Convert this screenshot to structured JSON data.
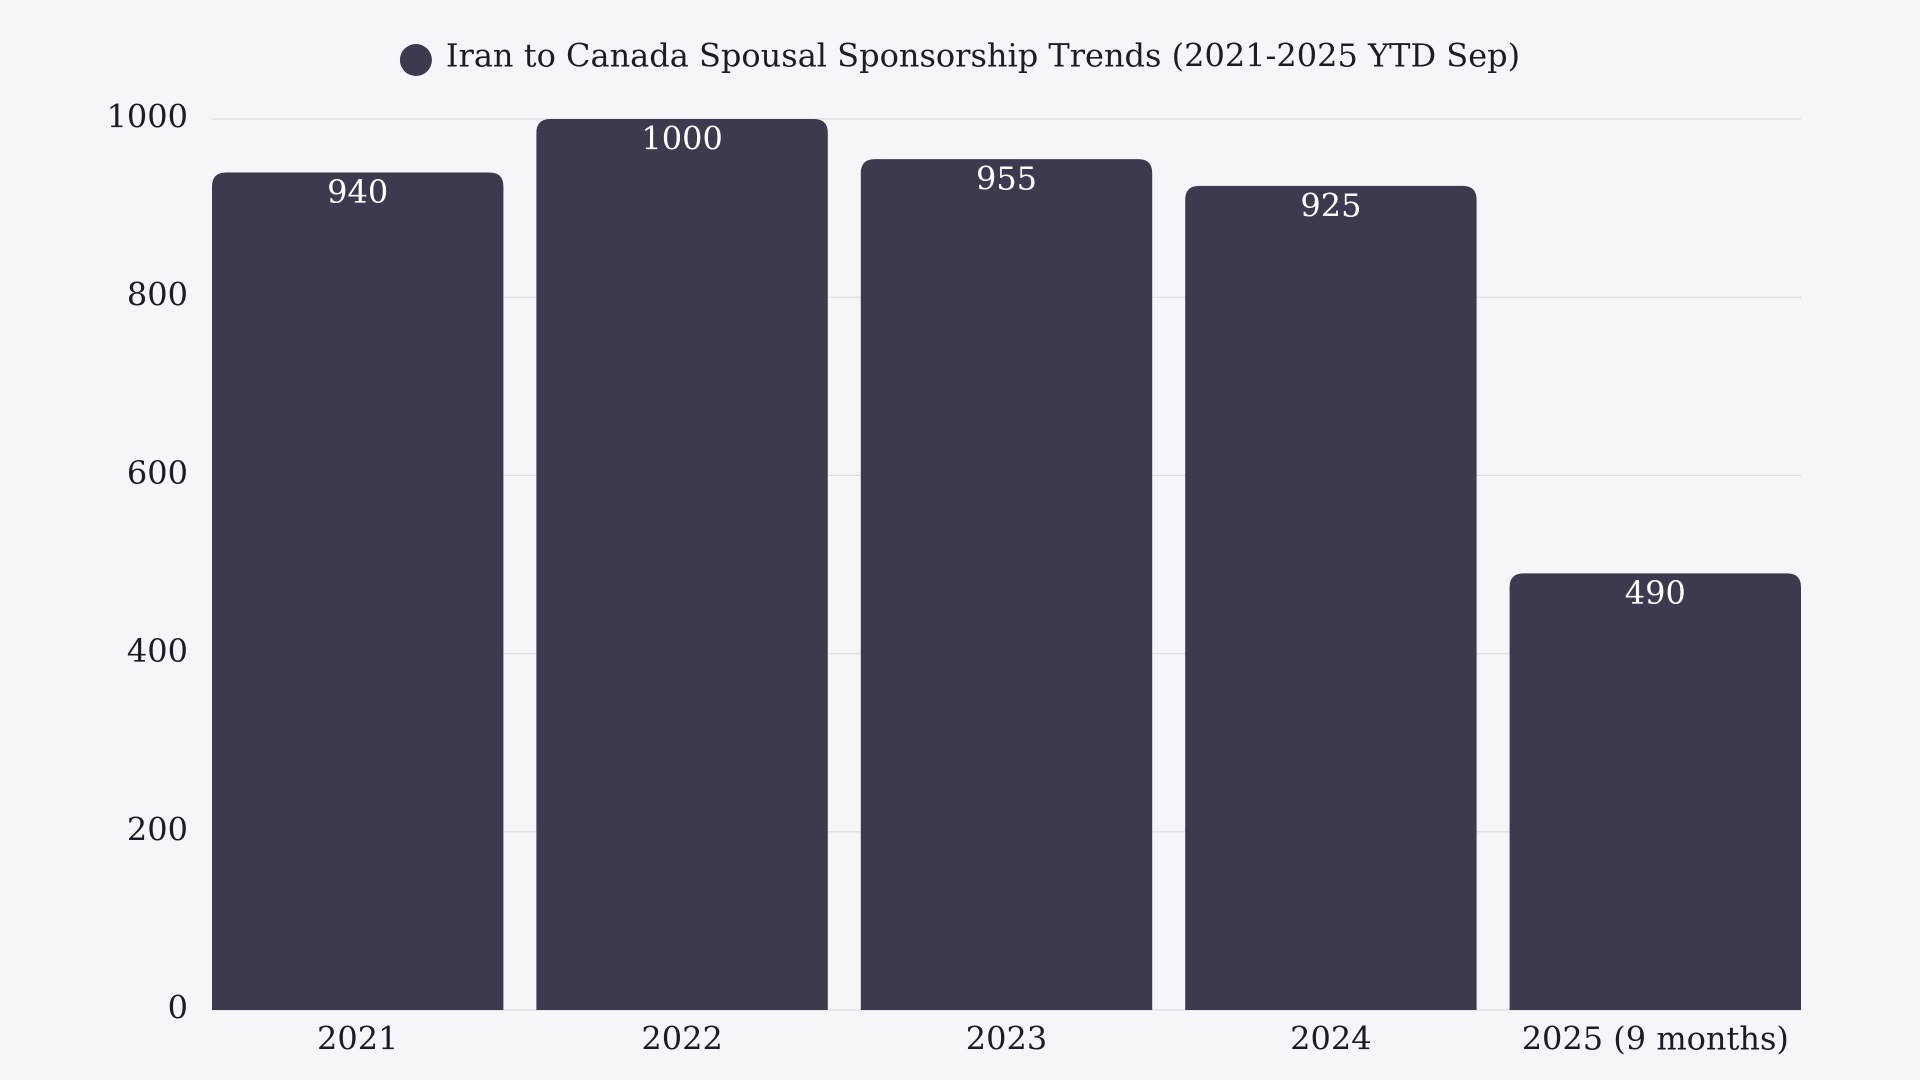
{
  "chart_data": {
    "type": "bar",
    "categories": [
      "2021",
      "2022",
      "2023",
      "2024",
      "2025 (9 months)"
    ],
    "series": [
      {
        "name": "Iran to Canada Spousal Sponsorship Trends (2021-2025 YTD Sep)",
        "color": "#3d3a50",
        "values": [
          940,
          1000,
          955,
          925,
          490
        ]
      }
    ],
    "ylim": [
      0,
      1000
    ],
    "yticks": [
      0,
      200,
      400,
      600,
      800,
      1000
    ],
    "grid": true,
    "legend": "top"
  }
}
